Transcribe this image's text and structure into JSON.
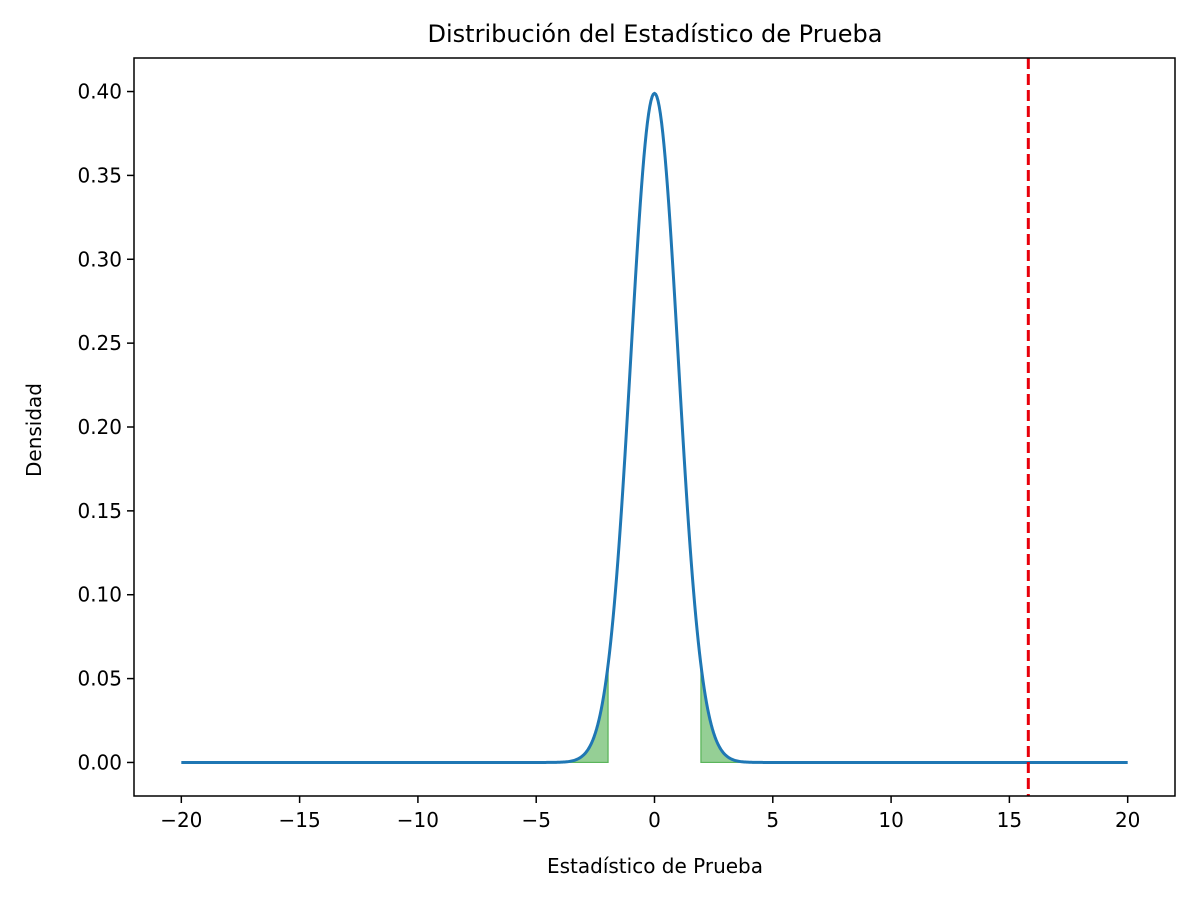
{
  "chart_data": {
    "type": "line",
    "title": "Distribución del Estadístico de Prueba",
    "xlabel": "Estadístico de Prueba",
    "ylabel": "Densidad",
    "xlim": [
      -22,
      22
    ],
    "ylim": [
      -0.02,
      0.42
    ],
    "xticks": [
      -20,
      -15,
      -10,
      -5,
      0,
      5,
      10,
      15,
      20
    ],
    "xtick_labels": [
      "−20",
      "−15",
      "−10",
      "−5",
      "0",
      "5",
      "10",
      "15",
      "20"
    ],
    "yticks": [
      0.0,
      0.05,
      0.1,
      0.15,
      0.2,
      0.25,
      0.3,
      0.35,
      0.4
    ],
    "ytick_labels": [
      "0.00",
      "0.05",
      "0.10",
      "0.15",
      "0.20",
      "0.25",
      "0.30",
      "0.35",
      "0.40"
    ],
    "grid": false,
    "series": [
      {
        "kind": "standard-normal-pdf",
        "x_range": [
          -20,
          20
        ],
        "peak_value": 0.399,
        "color": "#1f77b4"
      }
    ],
    "shaded_regions": [
      {
        "x_from": -4,
        "x_to": -1.96,
        "color": "#2ca02c",
        "opacity": 0.5
      },
      {
        "x_from": 1.96,
        "x_to": 4,
        "color": "#2ca02c",
        "opacity": 0.5
      }
    ],
    "vertical_lines": [
      {
        "x": 15.8,
        "color": "#e8000b",
        "style": "dashed"
      }
    ]
  }
}
